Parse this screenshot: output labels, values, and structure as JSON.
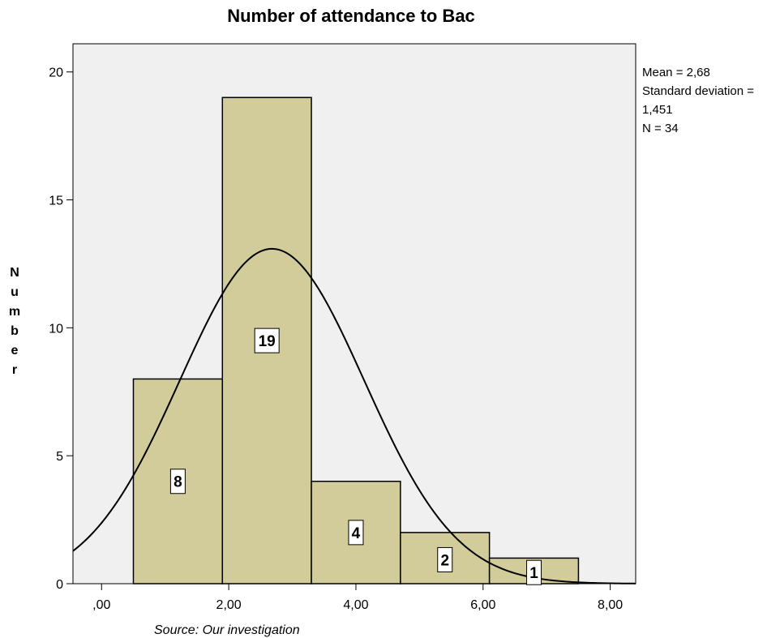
{
  "chart_data": {
    "type": "bar",
    "title": "Number of attendance to Bac",
    "ylabel": "Number",
    "xlabel": "",
    "bins": [
      {
        "from": 0.5,
        "to": 1.9,
        "value": 8
      },
      {
        "from": 1.9,
        "to": 3.3,
        "value": 19
      },
      {
        "from": 3.3,
        "to": 4.7,
        "value": 4
      },
      {
        "from": 4.7,
        "to": 6.1,
        "value": 2
      },
      {
        "from": 6.1,
        "to": 7.5,
        "value": 1
      }
    ],
    "x_ticks": [
      0,
      2,
      4,
      6,
      8
    ],
    "x_tick_labels": [
      ",00",
      "2,00",
      "4,00",
      "6,00",
      "8,00"
    ],
    "y_ticks": [
      0,
      5,
      10,
      15,
      20
    ],
    "y_tick_labels": [
      "0",
      "5",
      "10",
      "15",
      "20"
    ],
    "xlim": [
      -0.45,
      8.4
    ],
    "ylim": [
      0,
      21.1
    ],
    "normal_curve": {
      "mean": 2.68,
      "sd": 1.451,
      "n": 34,
      "bin_width": 1.4
    },
    "stats_lines": [
      "Mean = 2,68",
      "Standard deviation =",
      "1,451",
      "N = 34"
    ],
    "source": "Source: Our investigation",
    "colors": {
      "bar_fill": "#d1cc9a",
      "plot_bg": "#f0f0f0",
      "outline": "#000000"
    },
    "grid": false,
    "legend": "none"
  }
}
